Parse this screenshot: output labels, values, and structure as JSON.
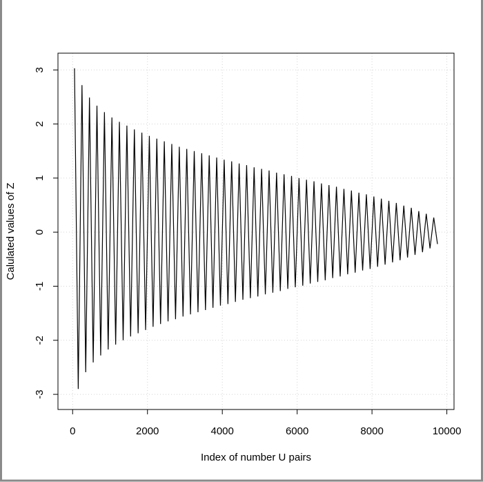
{
  "chart_data": {
    "type": "line",
    "x_label": "Index of number U pairs",
    "y_label": "Calulated values of Z",
    "color": "#000000",
    "grid": true,
    "xlim": [
      -392,
      10192
    ],
    "xticks": [
      0,
      2000,
      4000,
      6000,
      8000,
      10000
    ],
    "ylim": [
      -3.28,
      3.31
    ],
    "yticks": [
      -3,
      -2,
      -1,
      0,
      1,
      2,
      3
    ],
    "x": [
      50,
      150,
      250,
      350,
      450,
      550,
      650,
      750,
      850,
      950,
      1050,
      1150,
      1250,
      1350,
      1450,
      1550,
      1650,
      1750,
      1850,
      1950,
      2050,
      2150,
      2250,
      2350,
      2450,
      2550,
      2650,
      2750,
      2850,
      2950,
      3050,
      3150,
      3250,
      3350,
      3450,
      3550,
      3650,
      3750,
      3850,
      3950,
      4050,
      4150,
      4250,
      4350,
      4450,
      4550,
      4650,
      4750,
      4850,
      4950,
      5050,
      5150,
      5250,
      5350,
      5450,
      5550,
      5650,
      5750,
      5850,
      5950,
      6050,
      6150,
      6250,
      6350,
      6450,
      6550,
      6650,
      6750,
      6850,
      6950,
      7050,
      7150,
      7250,
      7350,
      7450,
      7550,
      7650,
      7750,
      7850,
      7950,
      8050,
      8150,
      8250,
      8350,
      8450,
      8550,
      8650,
      8750,
      8850,
      8950,
      9050,
      9150,
      9250,
      9350,
      9450,
      9550,
      9650,
      9750
    ],
    "values": [
      3.03,
      -2.9,
      2.72,
      -2.59,
      2.49,
      -2.41,
      2.34,
      -2.28,
      2.22,
      -2.17,
      2.12,
      -2.08,
      2.04,
      -2.0,
      1.97,
      -1.93,
      1.9,
      -1.87,
      1.84,
      -1.81,
      1.78,
      -1.75,
      1.73,
      -1.7,
      1.68,
      -1.65,
      1.63,
      -1.61,
      1.58,
      -1.56,
      1.54,
      -1.52,
      1.5,
      -1.48,
      1.46,
      -1.44,
      1.42,
      -1.4,
      1.38,
      -1.36,
      1.34,
      -1.33,
      1.31,
      -1.29,
      1.27,
      -1.25,
      1.24,
      -1.22,
      1.2,
      -1.19,
      1.17,
      -1.15,
      1.14,
      -1.12,
      1.1,
      -1.09,
      1.07,
      -1.05,
      1.04,
      -1.02,
      1.0,
      -0.99,
      0.97,
      -0.95,
      0.94,
      -0.92,
      0.9,
      -0.89,
      0.87,
      -0.85,
      0.84,
      -0.82,
      0.8,
      -0.78,
      0.77,
      -0.75,
      0.73,
      -0.71,
      0.7,
      -0.68,
      0.66,
      -0.64,
      0.62,
      -0.6,
      0.58,
      -0.56,
      0.54,
      -0.52,
      0.49,
      -0.47,
      0.45,
      -0.42,
      0.39,
      -0.37,
      0.34,
      -0.3,
      0.27,
      -0.22
    ]
  }
}
